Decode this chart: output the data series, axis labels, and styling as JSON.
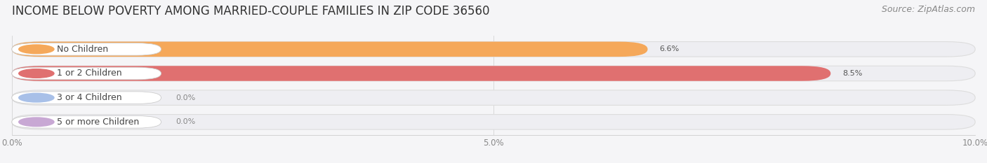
{
  "title": "INCOME BELOW POVERTY AMONG MARRIED-COUPLE FAMILIES IN ZIP CODE 36560",
  "source": "Source: ZipAtlas.com",
  "categories": [
    "No Children",
    "1 or 2 Children",
    "3 or 4 Children",
    "5 or more Children"
  ],
  "values": [
    6.6,
    8.5,
    0.0,
    0.0
  ],
  "bar_colors": [
    "#F5A85A",
    "#E07070",
    "#A8C0E8",
    "#C8A8D4"
  ],
  "track_color": "#EEEEF2",
  "track_edge_color": "#DDDDDD",
  "xlim": [
    0,
    10.0
  ],
  "xticks": [
    0.0,
    5.0,
    10.0
  ],
  "xticklabels": [
    "0.0%",
    "5.0%",
    "10.0%"
  ],
  "background_color": "#F5F5F7",
  "title_fontsize": 12,
  "source_fontsize": 9,
  "label_fontsize": 9,
  "value_fontsize": 8
}
